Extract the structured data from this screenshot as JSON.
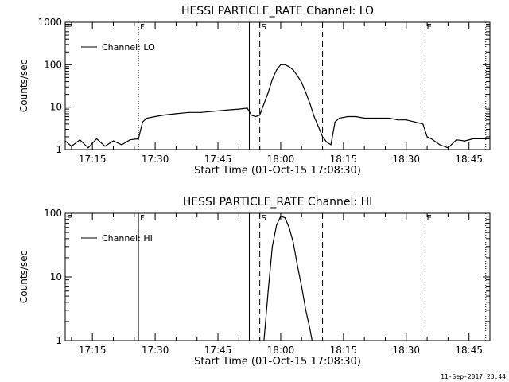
{
  "chart_data": [
    {
      "type": "line",
      "title": "HESSI PARTICLE_RATE Channel: LO",
      "xlabel": "Start Time (01-Oct-15 17:08:30)",
      "ylabel": "Counts/sec",
      "yscale": "log",
      "ylim": [
        1,
        1000
      ],
      "xlim": [
        "17:08:30",
        "18:50:00"
      ],
      "xticks": [
        "17:15",
        "17:30",
        "17:45",
        "18:00",
        "18:15",
        "18:30",
        "18:45"
      ],
      "yticks": [
        "1",
        "10",
        "100",
        "1000"
      ],
      "legend": "Channel: LO",
      "legend_position": "top-left",
      "markers": [
        {
          "label": "E",
          "time": "17:08:30",
          "style": "dotted"
        },
        {
          "label": "F",
          "time": "17:26:00",
          "style": "dotted"
        },
        {
          "label": "",
          "time": "17:52:30",
          "style": "solid"
        },
        {
          "label": "S",
          "time": "17:55:00",
          "style": "dashed"
        },
        {
          "label": "",
          "time": "18:10:00",
          "style": "dashed"
        },
        {
          "label": "E",
          "time": "18:34:30",
          "style": "dotted"
        },
        {
          "label": "",
          "time": "18:49:00",
          "style": "dotted"
        }
      ],
      "series": [
        {
          "x": [
            "17:08:30",
            "17:10:00",
            "17:12:00",
            "17:14:00",
            "17:16:00",
            "17:18:00",
            "17:20:00",
            "17:22:00",
            "17:24:00",
            "17:26:00",
            "17:27:00",
            "17:28:00",
            "17:30:00",
            "17:32:00",
            "17:35:00",
            "17:38:00",
            "17:41:00",
            "17:44:00",
            "17:47:00",
            "17:50:00",
            "17:52:00",
            "17:53:00",
            "17:54:00",
            "17:55:00",
            "17:56:00",
            "17:57:00",
            "17:58:00",
            "17:59:00",
            "18:00:00",
            "18:01:00",
            "18:02:00",
            "18:03:00",
            "18:04:00",
            "18:05:00",
            "18:06:00",
            "18:07:00",
            "18:08:00",
            "18:09:00",
            "18:10:00",
            "18:11:00",
            "18:12:00",
            "18:13:00",
            "18:14:00",
            "18:16:00",
            "18:18:00",
            "18:20:00",
            "18:22:00",
            "18:24:00",
            "18:26:00",
            "18:28:00",
            "18:30:00",
            "18:32:00",
            "18:34:00",
            "18:35:00",
            "18:36:00",
            "18:38:00",
            "18:40:00",
            "18:42:00",
            "18:44:00",
            "18:46:00",
            "18:48:00",
            "18:50:00"
          ],
          "y": [
            1.6,
            1.2,
            1.7,
            1.1,
            1.8,
            1.2,
            1.6,
            1.3,
            1.7,
            1.8,
            4.5,
            5.5,
            6.0,
            6.5,
            7.0,
            7.5,
            7.5,
            8.0,
            8.5,
            9.0,
            9.5,
            6.5,
            6.0,
            6.5,
            12,
            22,
            45,
            75,
            100,
            100,
            90,
            75,
            55,
            38,
            22,
            12,
            6.0,
            3.5,
            2.0,
            1.5,
            1.3,
            4.5,
            5.5,
            6.0,
            6.0,
            5.5,
            5.5,
            5.5,
            5.5,
            5.0,
            5.0,
            4.5,
            4.0,
            2.0,
            1.8,
            1.3,
            1.1,
            1.7,
            1.6,
            1.8,
            1.8,
            1.8
          ]
        }
      ]
    },
    {
      "type": "line",
      "title": "HESSI PARTICLE_RATE Channel: HI",
      "xlabel": "Start Time (01-Oct-15 17:08:30)",
      "ylabel": "Counts/sec",
      "yscale": "log",
      "ylim": [
        1,
        100
      ],
      "xlim": [
        "17:08:30",
        "18:50:00"
      ],
      "xticks": [
        "17:15",
        "17:30",
        "17:45",
        "18:00",
        "18:15",
        "18:30",
        "18:45"
      ],
      "yticks": [
        "1",
        "10",
        "100"
      ],
      "legend": "Channel: HI",
      "legend_position": "top-left",
      "markers": [
        {
          "label": "E",
          "time": "17:08:30",
          "style": "dotted"
        },
        {
          "label": "F",
          "time": "17:26:00",
          "style": "solid"
        },
        {
          "label": "",
          "time": "17:52:30",
          "style": "solid"
        },
        {
          "label": "S",
          "time": "17:55:00",
          "style": "dashed"
        },
        {
          "label": "",
          "time": "18:10:00",
          "style": "dashed"
        },
        {
          "label": "E",
          "time": "18:34:30",
          "style": "dotted"
        },
        {
          "label": "",
          "time": "18:49:00",
          "style": "dotted"
        }
      ],
      "series": [
        {
          "x": [
            "17:56:00",
            "17:57:00",
            "17:58:00",
            "17:59:00",
            "18:00:00",
            "18:01:00",
            "18:02:00",
            "18:03:00",
            "18:04:00",
            "18:05:00",
            "18:06:00",
            "18:07:00",
            "18:07:30"
          ],
          "y": [
            1.0,
            6,
            30,
            65,
            90,
            85,
            60,
            35,
            15,
            7,
            3,
            1.5,
            1.0
          ]
        }
      ]
    }
  ],
  "footer_timestamp": "11-Sep-2017 23:44"
}
